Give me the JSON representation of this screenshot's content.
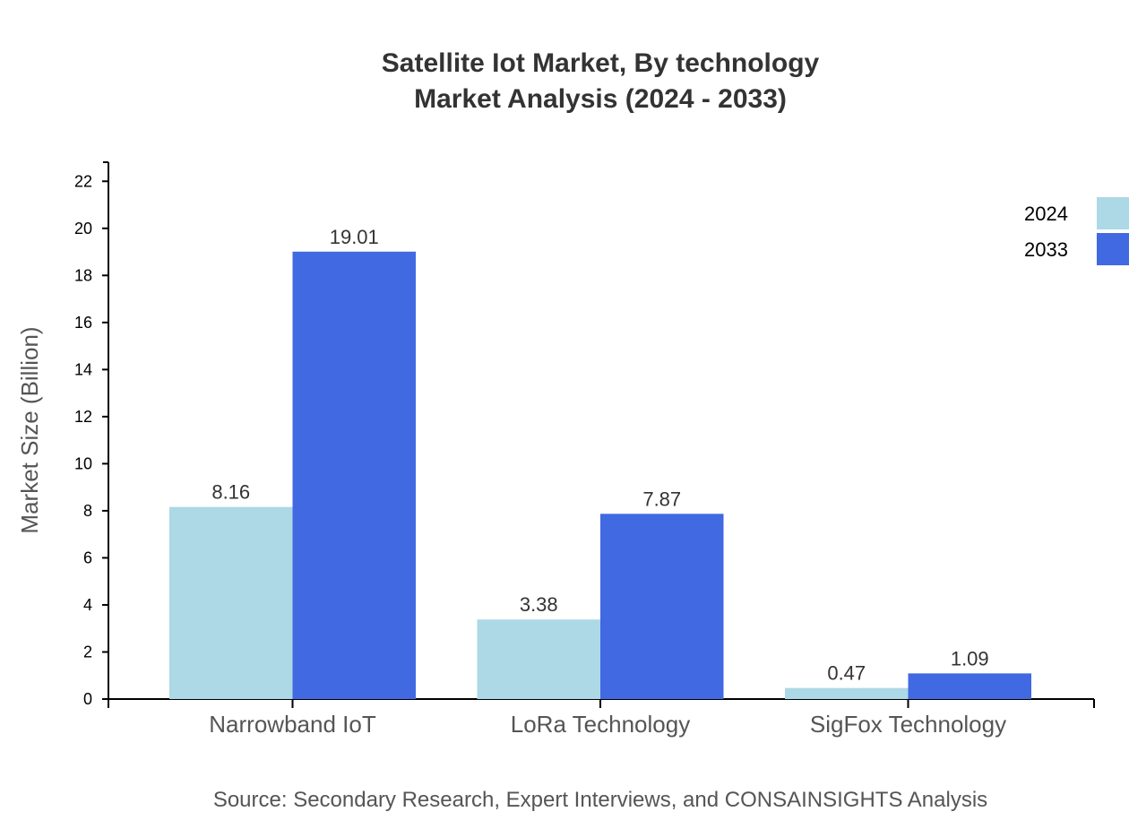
{
  "chart_data": {
    "type": "bar",
    "title": "Satellite Iot Market, By technology",
    "subtitle": "Market Analysis (2024 - 2033)",
    "xlabel": "",
    "ylabel": "Market Size (Billion)",
    "categories": [
      "Narrowband IoT",
      "LoRa Technology",
      "SigFox Technology"
    ],
    "series": [
      {
        "name": "2024",
        "color": "#add8e6",
        "values": [
          8.16,
          3.38,
          0.47
        ]
      },
      {
        "name": "2033",
        "color": "#4169e1",
        "values": [
          19.01,
          7.87,
          1.09
        ]
      }
    ],
    "ylim": [
      0,
      22.81
    ],
    "yticks": [
      0,
      2,
      4,
      6,
      8,
      10,
      12,
      14,
      16,
      18,
      20,
      22
    ],
    "grid": false,
    "legend": "top-right",
    "source": "Source: Secondary Research, Expert Interviews, and CONSAINSIGHTS Analysis"
  }
}
